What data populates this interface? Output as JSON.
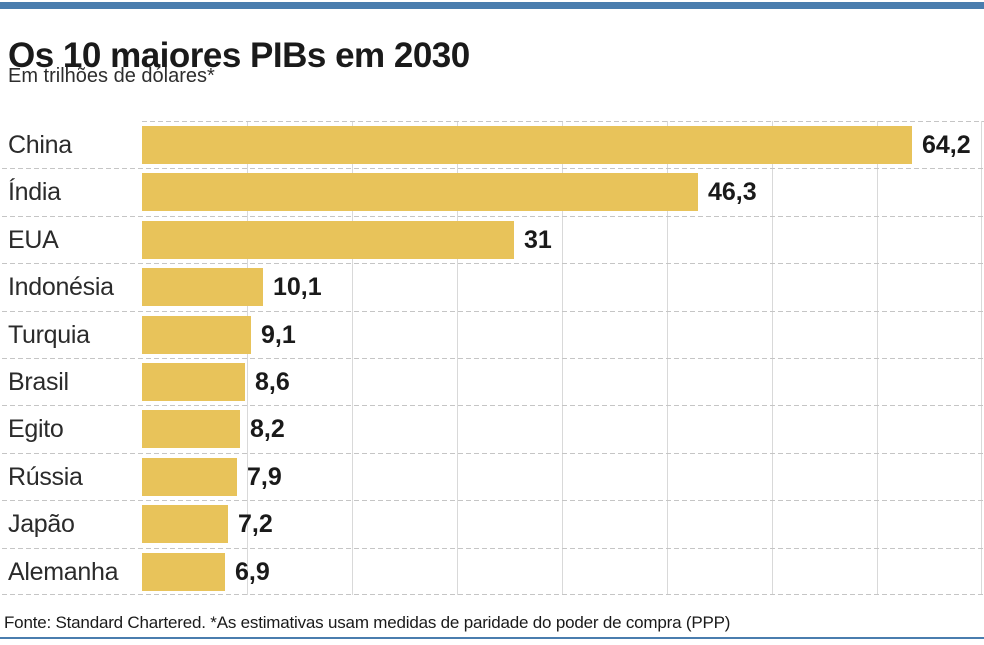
{
  "header": {
    "title": "Os 10 maiores PIBs em 2030",
    "subtitle": "Em trilhões de dólares*"
  },
  "footer": {
    "source": "Fonte: Standard Chartered. *As estimativas usam medidas de paridade do poder de compra (PPP)"
  },
  "colors": {
    "accent_blue": "#4a7dae",
    "bar_gold": "#e8c35a",
    "grid_solid": "#d9d9d9",
    "grid_dashed": "#c5c5c5",
    "text_dark": "#1a1a1a"
  },
  "chart_data": {
    "type": "bar",
    "orientation": "horizontal",
    "title": "Os 10 maiores PIBs em 2030",
    "subtitle": "Em trilhões de dólares*",
    "categories": [
      "China",
      "Índia",
      "EUA",
      "Indonésia",
      "Turquia",
      "Brasil",
      "Egito",
      "Rússia",
      "Japão",
      "Alemanha"
    ],
    "values": [
      64.2,
      46.3,
      31,
      10.1,
      9.1,
      8.6,
      8.2,
      7.9,
      7.2,
      6.9
    ],
    "value_labels": [
      "64,2",
      "46,3",
      "31",
      "10,1",
      "9,1",
      "8,6",
      "8,2",
      "7,9",
      "7,2",
      "6,9"
    ],
    "xlim": [
      0,
      70
    ],
    "grid": true,
    "gridline_count": 8,
    "bar_color": "#e8c35a",
    "value_label_position": "outside-end",
    "legend": "none"
  }
}
